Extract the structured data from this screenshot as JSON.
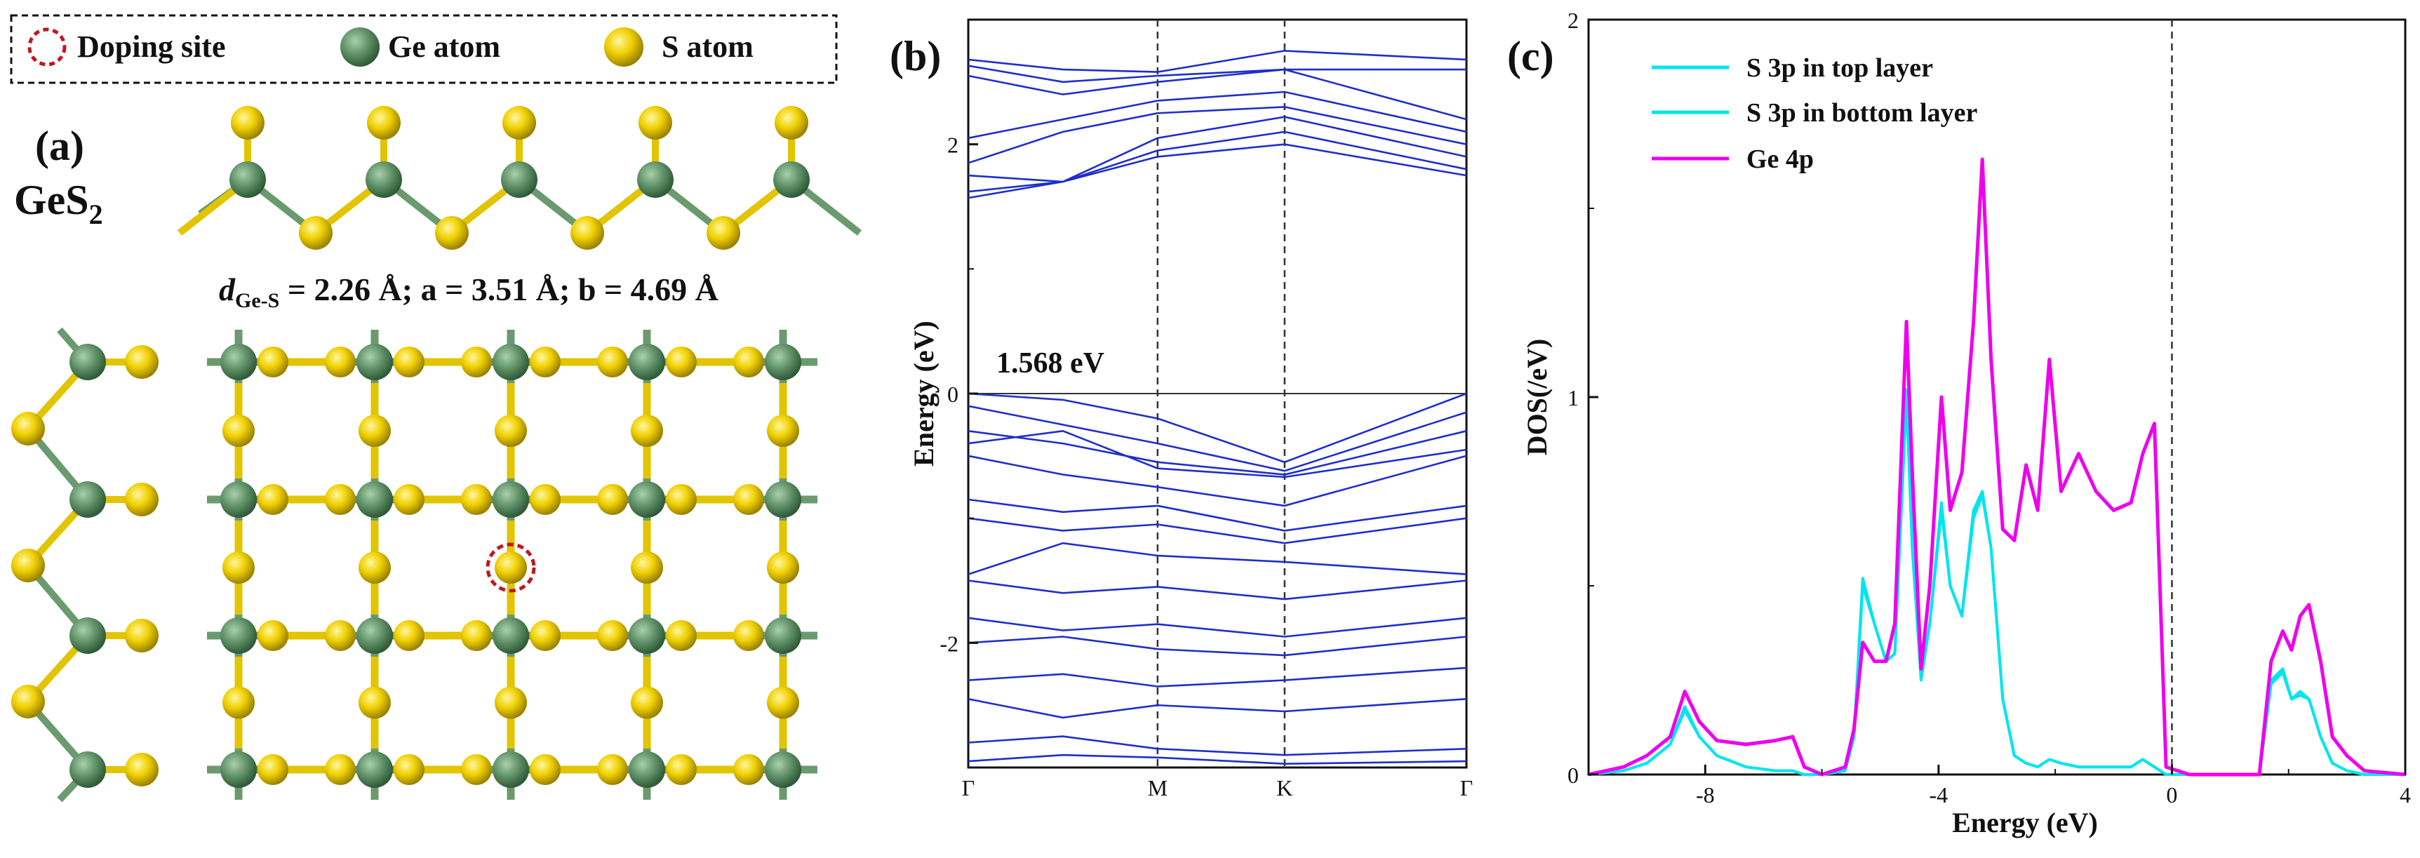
{
  "legend": {
    "doping_site": "Doping site",
    "ge_atom": "Ge atom",
    "s_atom": "S atom"
  },
  "panel_a": {
    "label": "(a)",
    "compound_base": "GeS",
    "compound_sub": "2",
    "param_d": "d",
    "param_d_sub": "Ge-S",
    "param_text": " = 2.26 Å; a = 3.51 Å; b = 4.69 Å"
  },
  "colors": {
    "ge": "#5e8f66",
    "ge_dark": "#2f5a37",
    "s": "#f0d000",
    "s_dark": "#9a8200",
    "bond_ge": "#6a9a6e",
    "bond_s": "#e2c400",
    "dope": "#c0171c",
    "band": "#1f2fc8",
    "s3p": "#00e5ee",
    "ge4p": "#ee00ee"
  },
  "chart_data": [
    {
      "type": "line",
      "panel": "(b)",
      "title": "",
      "ylabel": "Energy (eV)",
      "xlabel": "",
      "x_ticks": [
        "Γ",
        "M",
        "K",
        "Γ"
      ],
      "ylim": [
        -3,
        3
      ],
      "y_ticks": [
        -2,
        0,
        2
      ],
      "annotation": "1.568 eV",
      "band_gap_eV": 1.568,
      "conduction_bands_eV": [
        [
          1.57,
          1.7,
          1.9,
          2.0,
          1.75
        ],
        [
          1.62,
          1.7,
          1.95,
          2.1,
          1.8
        ],
        [
          1.75,
          1.7,
          2.05,
          2.22,
          1.9
        ],
        [
          1.85,
          2.1,
          2.25,
          2.3,
          2.0
        ],
        [
          2.05,
          2.2,
          2.35,
          2.42,
          2.1
        ],
        [
          2.55,
          2.4,
          2.5,
          2.6,
          2.2
        ],
        [
          2.63,
          2.5,
          2.55,
          2.6,
          2.6
        ],
        [
          2.68,
          2.6,
          2.58,
          2.75,
          2.68
        ]
      ],
      "valence_bands_eV": [
        [
          0.0,
          -0.05,
          -0.2,
          -0.55,
          0.0
        ],
        [
          -0.1,
          -0.25,
          -0.4,
          -0.62,
          -0.15
        ],
        [
          -0.3,
          -0.4,
          -0.55,
          -0.65,
          -0.3
        ],
        [
          -0.4,
          -0.3,
          -0.6,
          -0.67,
          -0.45
        ],
        [
          -0.5,
          -0.65,
          -0.75,
          -0.9,
          -0.5
        ],
        [
          -0.85,
          -0.95,
          -0.9,
          -1.1,
          -0.9
        ],
        [
          -1.0,
          -1.1,
          -1.05,
          -1.2,
          -1.0
        ],
        [
          -1.45,
          -1.2,
          -1.3,
          -1.35,
          -1.45
        ],
        [
          -1.5,
          -1.6,
          -1.55,
          -1.65,
          -1.5
        ],
        [
          -1.8,
          -1.9,
          -1.85,
          -1.95,
          -1.8
        ],
        [
          -2.0,
          -1.95,
          -2.05,
          -2.1,
          -1.95
        ],
        [
          -2.3,
          -2.25,
          -2.35,
          -2.3,
          -2.2
        ],
        [
          -2.45,
          -2.6,
          -2.5,
          -2.55,
          -2.45
        ],
        [
          -2.8,
          -2.75,
          -2.85,
          -2.9,
          -2.85
        ],
        [
          -2.95,
          -2.9,
          -2.92,
          -2.97,
          -2.95
        ]
      ]
    },
    {
      "type": "line",
      "panel": "(c)",
      "title": "",
      "xlabel": "Energy (eV)",
      "ylabel": "DOS(/eV)",
      "xlim": [
        -10,
        4
      ],
      "ylim": [
        0,
        2
      ],
      "x_ticks": [
        -8,
        -4,
        0,
        4
      ],
      "y_ticks": [
        0,
        1,
        2
      ],
      "legend_placement": "top-left",
      "series": [
        {
          "name": "S 3p in top layer",
          "x": [
            -10,
            -9.4,
            -9,
            -8.6,
            -8.35,
            -8.1,
            -7.8,
            -7.3,
            -6.8,
            -6.5,
            -6.3,
            -6.0,
            -5.6,
            -5.45,
            -5.3,
            -5.1,
            -4.9,
            -4.75,
            -4.55,
            -4.45,
            -4.3,
            -4.15,
            -3.95,
            -3.8,
            -3.6,
            -3.4,
            -3.25,
            -3.1,
            -2.9,
            -2.7,
            -2.5,
            -2.3,
            -2.1,
            -1.9,
            -1.6,
            -1.3,
            -1.0,
            -0.7,
            -0.5,
            -0.3,
            -0.1,
            0.3,
            1.0,
            1.5,
            1.7,
            1.9,
            2.05,
            2.2,
            2.35,
            2.55,
            2.75,
            3.0,
            3.3,
            4.0
          ],
          "y": [
            0,
            0.01,
            0.03,
            0.08,
            0.18,
            0.1,
            0.05,
            0.02,
            0.01,
            0.01,
            0.0,
            0.0,
            0.01,
            0.1,
            0.52,
            0.4,
            0.3,
            0.32,
            1.02,
            0.6,
            0.26,
            0.4,
            0.72,
            0.5,
            0.42,
            0.7,
            0.75,
            0.6,
            0.2,
            0.05,
            0.03,
            0.02,
            0.04,
            0.03,
            0.02,
            0.02,
            0.02,
            0.02,
            0.04,
            0.02,
            0.0,
            0.0,
            0.0,
            0.0,
            0.25,
            0.28,
            0.2,
            0.22,
            0.2,
            0.1,
            0.03,
            0.01,
            0.0,
            0.0
          ]
        },
        {
          "name": "S 3p in bottom layer",
          "x": [
            -10,
            -9.4,
            -9,
            -8.6,
            -8.35,
            -8.1,
            -7.8,
            -7.3,
            -6.8,
            -6.5,
            -6.3,
            -6.0,
            -5.6,
            -5.45,
            -5.3,
            -5.1,
            -4.9,
            -4.75,
            -4.55,
            -4.45,
            -4.3,
            -4.15,
            -3.95,
            -3.8,
            -3.6,
            -3.4,
            -3.25,
            -3.1,
            -2.9,
            -2.7,
            -2.5,
            -2.3,
            -2.1,
            -1.9,
            -1.6,
            -1.3,
            -1.0,
            -0.7,
            -0.5,
            -0.3,
            -0.1,
            0.3,
            1.0,
            1.5,
            1.7,
            1.9,
            2.05,
            2.2,
            2.35,
            2.55,
            2.75,
            3.0,
            3.3,
            4.0
          ],
          "y": [
            0,
            0.01,
            0.03,
            0.08,
            0.17,
            0.1,
            0.05,
            0.02,
            0.01,
            0.01,
            0.0,
            0.0,
            0.01,
            0.1,
            0.5,
            0.4,
            0.3,
            0.32,
            1.0,
            0.6,
            0.25,
            0.4,
            0.7,
            0.5,
            0.42,
            0.68,
            0.74,
            0.6,
            0.2,
            0.05,
            0.03,
            0.02,
            0.04,
            0.03,
            0.02,
            0.02,
            0.02,
            0.02,
            0.04,
            0.02,
            0.0,
            0.0,
            0.0,
            0.0,
            0.24,
            0.27,
            0.2,
            0.21,
            0.2,
            0.1,
            0.03,
            0.01,
            0.0,
            0.0
          ]
        },
        {
          "name": "Ge 4p",
          "x": [
            -10,
            -9.4,
            -9,
            -8.6,
            -8.35,
            -8.1,
            -7.8,
            -7.3,
            -6.8,
            -6.5,
            -6.3,
            -6.0,
            -5.6,
            -5.45,
            -5.3,
            -5.1,
            -4.9,
            -4.75,
            -4.55,
            -4.45,
            -4.3,
            -4.15,
            -3.95,
            -3.8,
            -3.6,
            -3.4,
            -3.25,
            -3.1,
            -2.9,
            -2.7,
            -2.5,
            -2.3,
            -2.1,
            -1.9,
            -1.6,
            -1.3,
            -1.0,
            -0.7,
            -0.5,
            -0.3,
            -0.1,
            0.3,
            1.0,
            1.5,
            1.7,
            1.9,
            2.05,
            2.2,
            2.35,
            2.55,
            2.75,
            3.0,
            3.3,
            4.0
          ],
          "y": [
            0,
            0.02,
            0.05,
            0.1,
            0.22,
            0.14,
            0.09,
            0.08,
            0.09,
            0.1,
            0.02,
            0.0,
            0.02,
            0.12,
            0.35,
            0.3,
            0.3,
            0.4,
            1.2,
            0.8,
            0.28,
            0.5,
            1.0,
            0.7,
            0.8,
            1.2,
            1.63,
            1.1,
            0.65,
            0.62,
            0.82,
            0.7,
            1.1,
            0.75,
            0.85,
            0.75,
            0.7,
            0.72,
            0.85,
            0.93,
            0.02,
            0.0,
            0.0,
            0.0,
            0.3,
            0.38,
            0.33,
            0.42,
            0.45,
            0.3,
            0.1,
            0.05,
            0.01,
            0.0
          ]
        }
      ]
    }
  ],
  "panel_b_label": "(b)",
  "panel_c_label": "(c)"
}
